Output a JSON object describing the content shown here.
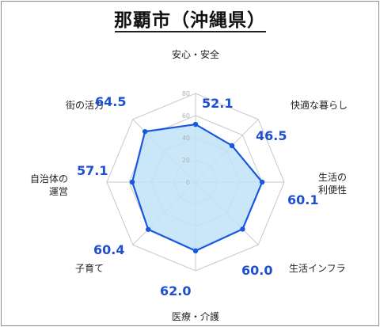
{
  "chart_data": {
    "type": "radar",
    "title": "那覇市（沖縄県）",
    "categories": [
      "安心・安全",
      "快適な暮らし",
      "生活の利便性",
      "生活インフラ",
      "医療・介護",
      "子育て",
      "自治体の運営",
      "街の活力"
    ],
    "category_lines": [
      [
        "安心・安全"
      ],
      [
        "快適な暮らし"
      ],
      [
        "生活の",
        "利便性"
      ],
      [
        "生活インフラ"
      ],
      [
        "医療・介護"
      ],
      [
        "子育て"
      ],
      [
        "自治体の",
        "運営"
      ],
      [
        "街の活力"
      ]
    ],
    "values": [
      52.1,
      46.5,
      60.1,
      60.0,
      62.0,
      60.4,
      57.1,
      64.5
    ],
    "value_labels": [
      "52.1",
      "46.5",
      "60.1",
      "60.0",
      "62.0",
      "60.4",
      "57.1",
      "64.5"
    ],
    "rlim": [
      0,
      80
    ],
    "ticks": [
      0,
      20,
      40,
      60,
      80
    ],
    "tick_labels": [
      "0",
      "20",
      "40",
      "60",
      "80"
    ],
    "grid": true,
    "colors": {
      "series_line": "#1a57e0",
      "series_fill": "#bfe3f7",
      "value_label": "#1f4fd1",
      "grid": "#c8c8c8"
    }
  }
}
